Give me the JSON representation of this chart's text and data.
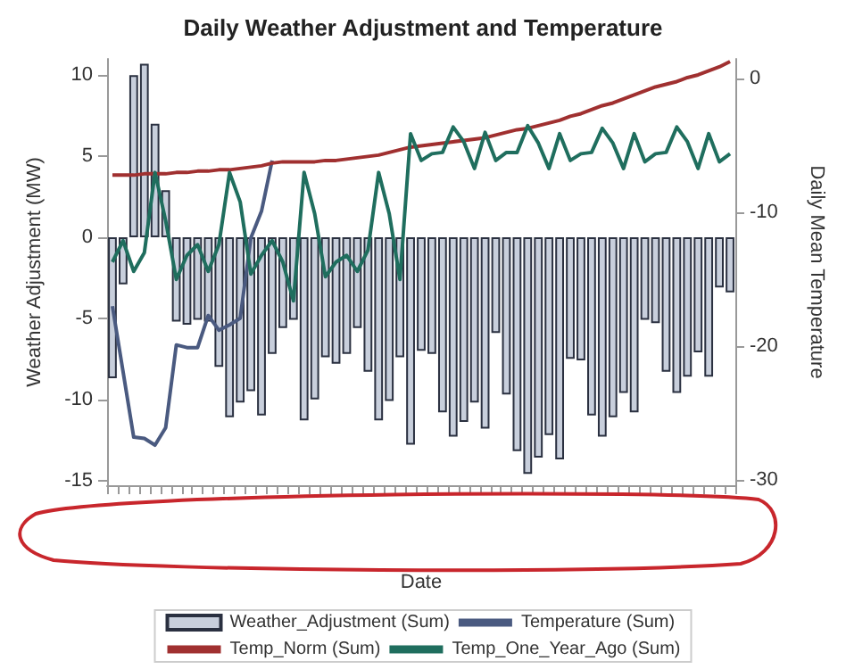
{
  "chart_data": {
    "type": "bar",
    "title": "Daily Weather Adjustment and Temperature",
    "xlabel": "Date",
    "ylabel": "Weather Adjustment (MW)",
    "y2label": "Daily Mean Temperature",
    "categories": [
      null,
      null,
      null,
      null,
      null,
      null,
      null,
      null,
      null,
      null,
      null,
      null,
      null,
      null,
      null,
      null,
      null,
      null,
      null,
      null,
      null,
      null,
      null,
      null,
      null,
      null,
      null,
      null,
      null,
      null,
      null,
      null,
      null,
      null,
      null,
      null,
      null,
      null,
      null,
      null,
      null,
      null,
      null,
      null,
      null,
      null,
      null,
      null,
      null,
      null,
      null,
      null,
      null,
      null,
      null,
      null,
      null,
      null,
      null
    ],
    "series": [
      {
        "name": "Weather_Adjustment (Sum)",
        "color": "#c8cfdc",
        "values": [
          -8.7,
          -2.9,
          10,
          10.7,
          7,
          2.9,
          -5.2,
          -5.4,
          -5.1,
          -5.2,
          -8,
          -11.1,
          -10.2,
          -9.5,
          -11,
          -7.2,
          -5.6,
          -5.1,
          -11.3,
          -10,
          -7.4,
          -7.8,
          -7.2,
          -5.6,
          -8.3,
          -11.3,
          -10.1,
          -7.4,
          -12.8,
          -7,
          -7.2,
          -10.8,
          -12.3,
          -11.4,
          -10.2,
          -11.8,
          -5.9,
          -9.7,
          -13.2,
          -14.6,
          -13.6,
          -12.2,
          -13.7,
          -7.5,
          -7.6,
          -11,
          -12.3,
          -11.1,
          -9.6,
          -10.8,
          -5.1,
          -5.3,
          -8.3,
          -9.6,
          -8.6,
          -7.1,
          -8.6,
          -3.1,
          -3.4
        ]
      },
      {
        "name": "Temperature (Sum)",
        "type": "line",
        "axis": "y2",
        "color": "#4a5a80",
        "values": [
          -17,
          -21.9,
          -26.8,
          -26.9,
          -27.4,
          -26.1,
          -19.9,
          -20.1,
          -20.1,
          -17.7,
          -18.8,
          -18.4,
          -17.9,
          -11.9,
          -9.9,
          -6.1,
          null,
          null,
          null,
          null,
          null,
          null,
          null,
          null,
          null,
          null,
          null,
          null,
          null,
          null,
          null,
          null,
          null,
          null,
          null,
          null,
          null,
          null,
          null,
          null,
          null,
          null,
          null,
          null,
          null,
          null,
          null,
          null,
          null,
          null,
          null,
          null,
          null,
          null,
          null,
          null,
          null,
          null,
          null
        ]
      },
      {
        "name": "Temp_Norm (Sum)",
        "type": "line",
        "axis": "y2",
        "color": "#a03030",
        "values": [
          -7.2,
          -7.2,
          -7.2,
          -7.1,
          -7.1,
          -7.1,
          -7.0,
          -7.0,
          -6.9,
          -6.9,
          -6.8,
          -6.8,
          -6.7,
          -6.6,
          -6.5,
          -6.3,
          -6.2,
          -6.2,
          -6.2,
          -6.2,
          -6.1,
          -6.1,
          -6.0,
          -5.9,
          -5.8,
          -5.7,
          -5.5,
          -5.3,
          -5.1,
          -5.0,
          -4.9,
          -4.8,
          -4.7,
          -4.6,
          -4.5,
          -4.4,
          -4.2,
          -4.0,
          -3.8,
          -3.7,
          -3.5,
          -3.3,
          -3.1,
          -2.8,
          -2.6,
          -2.3,
          -2.0,
          -1.8,
          -1.5,
          -1.2,
          -0.9,
          -0.6,
          -0.4,
          -0.2,
          0.1,
          0.3,
          0.6,
          0.9,
          1.3
        ]
      },
      {
        "name": "Temp_One_Year_Ago (Sum)",
        "type": "line",
        "axis": "y2",
        "color": "#1f6e5e",
        "values": [
          -13.7,
          -12.1,
          -14.4,
          -13,
          -7,
          -10.6,
          -15,
          -13.2,
          -12.4,
          -14.4,
          -12.4,
          -7,
          -9.2,
          -14.6,
          -13.2,
          -12.1,
          -13.7,
          -16.6,
          -7,
          -10.1,
          -14.8,
          -13.7,
          -13.2,
          -14.4,
          -12.8,
          -7,
          -10.1,
          -15,
          -4.1,
          -6.1,
          -5.6,
          -5.5,
          -3.6,
          -4.7,
          -6.7,
          -4,
          -6.1,
          -5.5,
          -5.5,
          -3.5,
          -4.8,
          -6.7,
          -4.1,
          -6.1,
          -5.6,
          -5.5,
          -3.7,
          -4.8,
          -6.7,
          -4.1,
          -6.2,
          -5.6,
          -5.5,
          -3.6,
          -4.7,
          -6.7,
          -4.1,
          -6.2,
          -5.6
        ]
      }
    ],
    "ylim": [
      -15.3,
      11
    ],
    "yticks": [
      -15,
      -10,
      -5,
      0,
      5,
      10
    ],
    "y2lim": [
      -30.4,
      1.5
    ],
    "y2ticks": [
      -30,
      -20,
      -10,
      0
    ],
    "legend": "bottom",
    "marker": "none"
  }
}
